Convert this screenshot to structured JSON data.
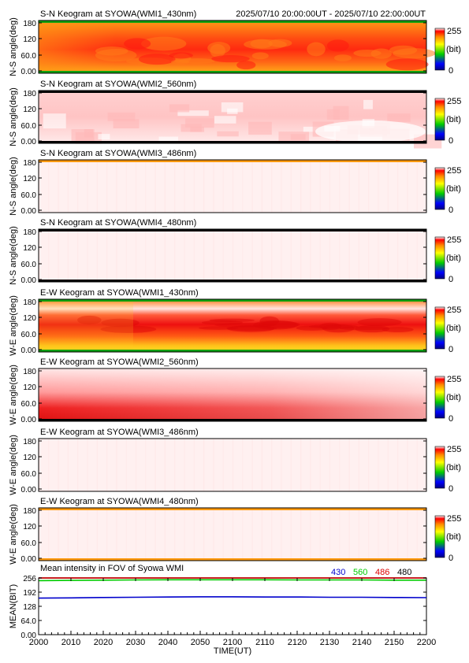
{
  "chart_data": [
    {
      "type": "heatmap",
      "title": "S-N Keogram at SYOWA(WMI1_430nm)",
      "time_range": "2025/07/10 20:00:00UT - 2025/07/10 22:00:00UT",
      "ylabel": "N-S angle(deg)",
      "yticks": [
        "180",
        "120",
        "60.0",
        "0.00"
      ],
      "ylim": [
        0,
        180
      ],
      "colorbar": {
        "max": "255",
        "unit": "(bit)",
        "min": "0"
      },
      "pattern": "orange",
      "edges": {
        "top": "green",
        "bottom": "green"
      }
    },
    {
      "type": "heatmap",
      "title": "S-N Keogram at SYOWA(WMI2_560nm)",
      "ylabel": "N-S angle(deg)",
      "yticks": [
        "180",
        "120",
        "60.0",
        "0.00"
      ],
      "ylim": [
        0,
        180
      ],
      "colorbar": {
        "max": "255",
        "unit": "(bit)",
        "min": "0"
      },
      "pattern": "pink",
      "edges": {
        "top": "black",
        "bottom": "black"
      }
    },
    {
      "type": "heatmap",
      "title": "S-N Keogram at SYOWA(WMI3_486nm)",
      "ylabel": "N-S angle(deg)",
      "yticks": [
        "180",
        "120",
        "60.0",
        "0.00"
      ],
      "ylim": [
        0,
        180
      ],
      "colorbar": {
        "max": "255",
        "unit": "(bit)",
        "min": "0"
      },
      "pattern": "pale",
      "edges": {
        "top": "orange",
        "bottom": "none"
      }
    },
    {
      "type": "heatmap",
      "title": "S-N Keogram at SYOWA(WMI4_480nm)",
      "ylabel": "N-S angle(deg)",
      "yticks": [
        "180",
        "120",
        "60.0",
        "0.00"
      ],
      "ylim": [
        0,
        180
      ],
      "colorbar": {
        "max": "255",
        "unit": "(bit)",
        "min": "0"
      },
      "pattern": "pale",
      "edges": {
        "top": "black",
        "bottom": "black"
      }
    },
    {
      "type": "heatmap",
      "title": "E-W Keogram at SYOWA(WMI1_430nm)",
      "ylabel": "W-E angle(deg)",
      "yticks": [
        "180",
        "120",
        "60.0",
        "0.00"
      ],
      "ylim": [
        0,
        180
      ],
      "colorbar": {
        "max": "255",
        "unit": "(bit)",
        "min": "0"
      },
      "pattern": "band",
      "edges": {
        "top": "green",
        "bottom": "green"
      }
    },
    {
      "type": "heatmap",
      "title": "E-W Keogram at SYOWA(WMI2_560nm)",
      "ylabel": "W-E angle(deg)",
      "yticks": [
        "180",
        "120",
        "60.0",
        "0.00"
      ],
      "ylim": [
        0,
        180
      ],
      "colorbar": {
        "max": "255",
        "unit": "(bit)",
        "min": "0"
      },
      "pattern": "lowred",
      "edges": {
        "top": "none",
        "bottom": "black"
      }
    },
    {
      "type": "heatmap",
      "title": "E-W Keogram at SYOWA(WMI3_486nm)",
      "ylabel": "W-E angle(deg)",
      "yticks": [
        "180",
        "120",
        "60.0",
        "0.00"
      ],
      "ylim": [
        0,
        180
      ],
      "colorbar": {
        "max": "255",
        "unit": "(bit)",
        "min": "0"
      },
      "pattern": "pale",
      "edges": {
        "top": "none",
        "bottom": "none"
      }
    },
    {
      "type": "heatmap",
      "title": "E-W Keogram at SYOWA(WMI4_480nm)",
      "ylabel": "W-E angle(deg)",
      "yticks": [
        "180",
        "120",
        "60.0",
        "0.00"
      ],
      "ylim": [
        0,
        180
      ],
      "colorbar": {
        "max": "255",
        "unit": "(bit)",
        "min": "0"
      },
      "pattern": "pale",
      "edges": {
        "top": "orange",
        "bottom": "orange"
      }
    },
    {
      "type": "line",
      "title": "Mean intensity in FOV of Syowa WMI",
      "xlabel": "TIME(UT)",
      "ylabel": "MEAN(BIT)",
      "xticks": [
        "2000",
        "2010",
        "2020",
        "2030",
        "2040",
        "2050",
        "2100",
        "2110",
        "2120",
        "2130",
        "2140",
        "2150",
        "2200"
      ],
      "yticks": [
        "256",
        "192",
        "128",
        "64.0",
        "0.00"
      ],
      "ylim": [
        0,
        256
      ],
      "grid": false,
      "legend_position": "top-right",
      "series": [
        {
          "name": "430",
          "color": "#0000cc",
          "values": [
            165,
            166,
            168,
            169,
            170,
            171,
            171,
            170,
            170,
            169,
            169,
            168,
            167
          ]
        },
        {
          "name": "560",
          "color": "#00cc00",
          "values": [
            244,
            245,
            246,
            247,
            248,
            248,
            248,
            248,
            247,
            247,
            247,
            246,
            246
          ]
        },
        {
          "name": "486",
          "color": "#dd0000",
          "values": [
            256,
            256,
            256,
            256,
            256,
            256,
            256,
            256,
            256,
            256,
            256,
            256,
            256
          ]
        },
        {
          "name": "480",
          "color": "#000000",
          "values": [
            256,
            256,
            256,
            256,
            256,
            256,
            256,
            256,
            256,
            256,
            256,
            256,
            256
          ]
        }
      ]
    }
  ]
}
